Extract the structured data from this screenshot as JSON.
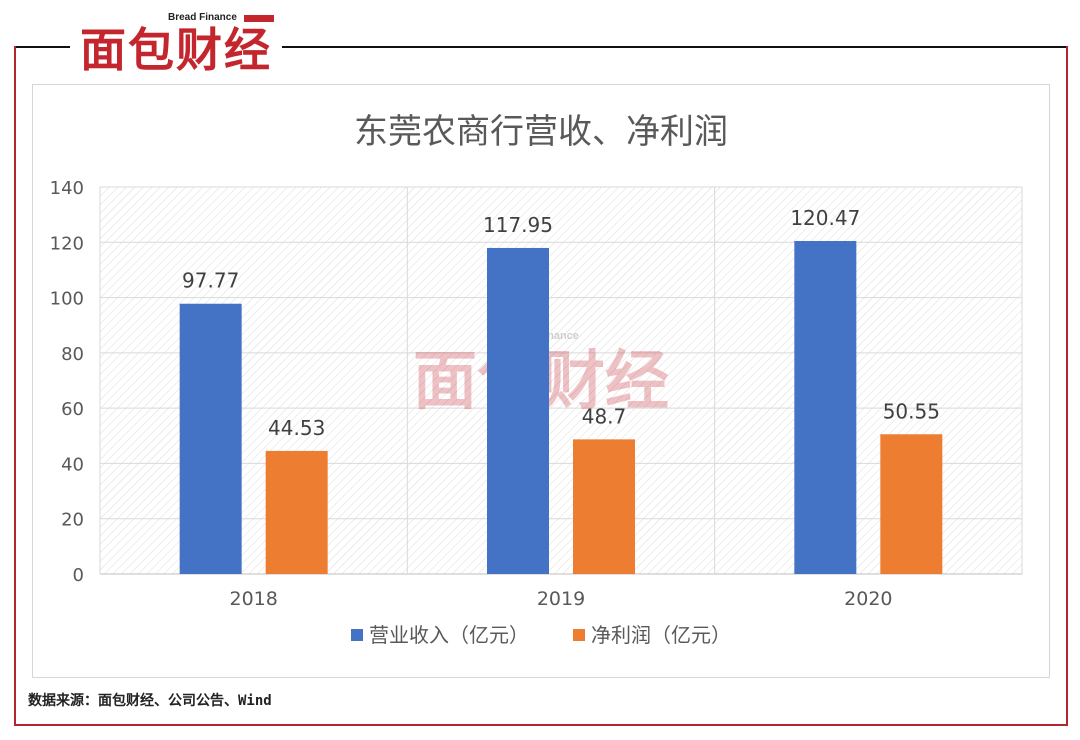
{
  "branding": {
    "logo_cn": "面包财经",
    "logo_en": "Bread Finance",
    "watermark_cn": "面包财经",
    "watermark_en": "Bread Finance"
  },
  "source_note": "数据来源：面包财经、公司公告、Wind",
  "colors": {
    "revenue": "#4472c4",
    "net_profit": "#ed7d31",
    "brand_red": "#c4262e"
  },
  "chart_data": {
    "type": "bar",
    "title": "东莞农商行营收、净利润",
    "categories": [
      "2018",
      "2019",
      "2020"
    ],
    "series": [
      {
        "name": "营业收入（亿元）",
        "values": [
          97.77,
          117.95,
          120.47
        ],
        "labels": [
          "97.77",
          "117.95",
          "120.47"
        ]
      },
      {
        "name": "净利润（亿元）",
        "values": [
          44.53,
          48.7,
          50.55
        ],
        "labels": [
          "44.53",
          "48.7",
          "50.55"
        ]
      }
    ],
    "ylim": [
      0,
      140
    ],
    "yticks": [
      0,
      20,
      40,
      60,
      80,
      100,
      120,
      140
    ],
    "grid": true,
    "legend": "bottom"
  }
}
